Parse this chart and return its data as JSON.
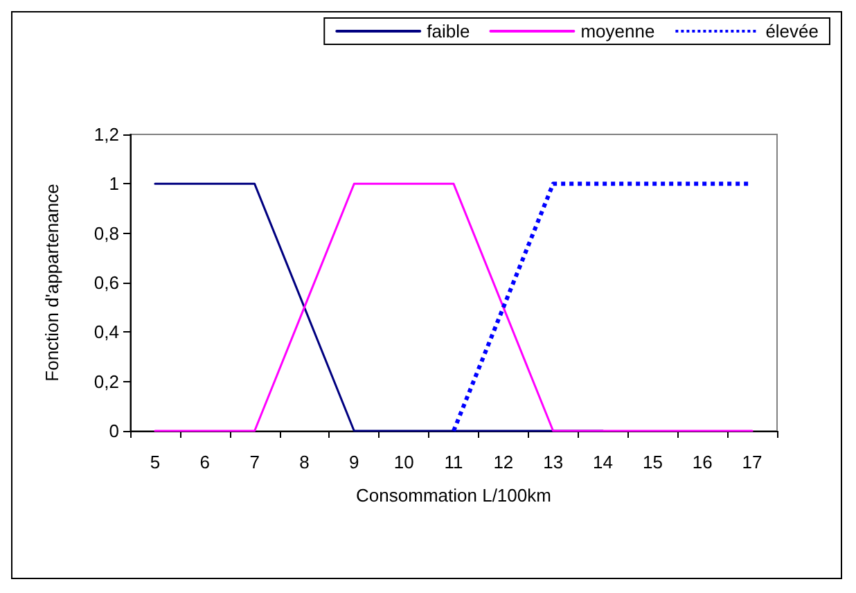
{
  "chart_data": {
    "type": "line",
    "xlabel": "Consommation L/100km",
    "ylabel": "Fonction d'appartenance",
    "categories": [
      "5",
      "6",
      "7",
      "8",
      "9",
      "10",
      "11",
      "12",
      "13",
      "14",
      "15",
      "16",
      "17"
    ],
    "ylim": [
      0,
      1.2
    ],
    "yticks": [
      0,
      {
        "value": 0.2,
        "label": "0,2"
      },
      {
        "value": 0.4,
        "label": "0,4"
      },
      {
        "value": 0.6,
        "label": "0,6"
      },
      {
        "value": 0.8,
        "label": "0,8"
      },
      1,
      {
        "value": 1.2,
        "label": "1,2"
      }
    ],
    "grid": false,
    "legend": "top right",
    "marker": "none",
    "series": [
      {
        "name": "faible",
        "color": "#000080",
        "line_style": "solid",
        "values": [
          1,
          1,
          1,
          0.5,
          0,
          0,
          0,
          0,
          0,
          0,
          null,
          null,
          null
        ]
      },
      {
        "name": "moyenne",
        "color": "#ff00ff",
        "line_style": "solid",
        "values": [
          0,
          0,
          0,
          0.5,
          1,
          1,
          1,
          0.5,
          0,
          0,
          0,
          0,
          0
        ]
      },
      {
        "name": "élevée",
        "color": "#0000ff",
        "line_style": "dotted",
        "values": [
          null,
          null,
          null,
          null,
          null,
          null,
          0,
          0.5,
          1,
          1,
          1,
          1,
          1
        ]
      }
    ]
  }
}
